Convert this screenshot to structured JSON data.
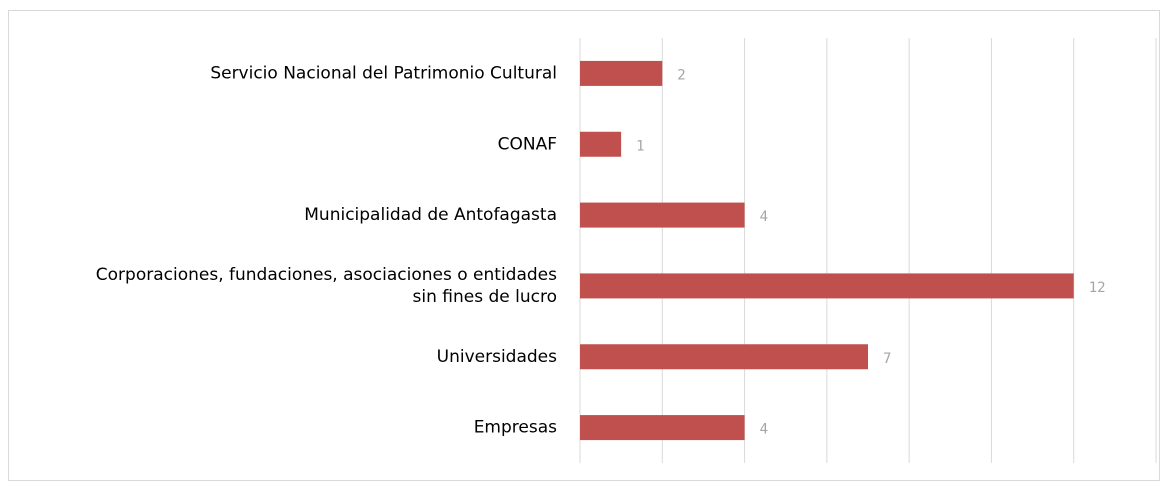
{
  "chart_data": {
    "type": "bar",
    "orientation": "horizontal",
    "categories": [
      "Servicio Nacional del Patrimonio Cultural",
      "CONAF",
      "Municipalidad de Antofagasta",
      "Corporaciones, fundaciones, asociaciones o entidades\nsin fines de lucro",
      "Universidades",
      "Empresas"
    ],
    "values": [
      2,
      1,
      4,
      12,
      7,
      4
    ],
    "color": "#c0504d",
    "xlim": [
      0,
      14
    ],
    "xticks": [
      0,
      2,
      4,
      6,
      8,
      10,
      12,
      14
    ],
    "grid": true
  }
}
